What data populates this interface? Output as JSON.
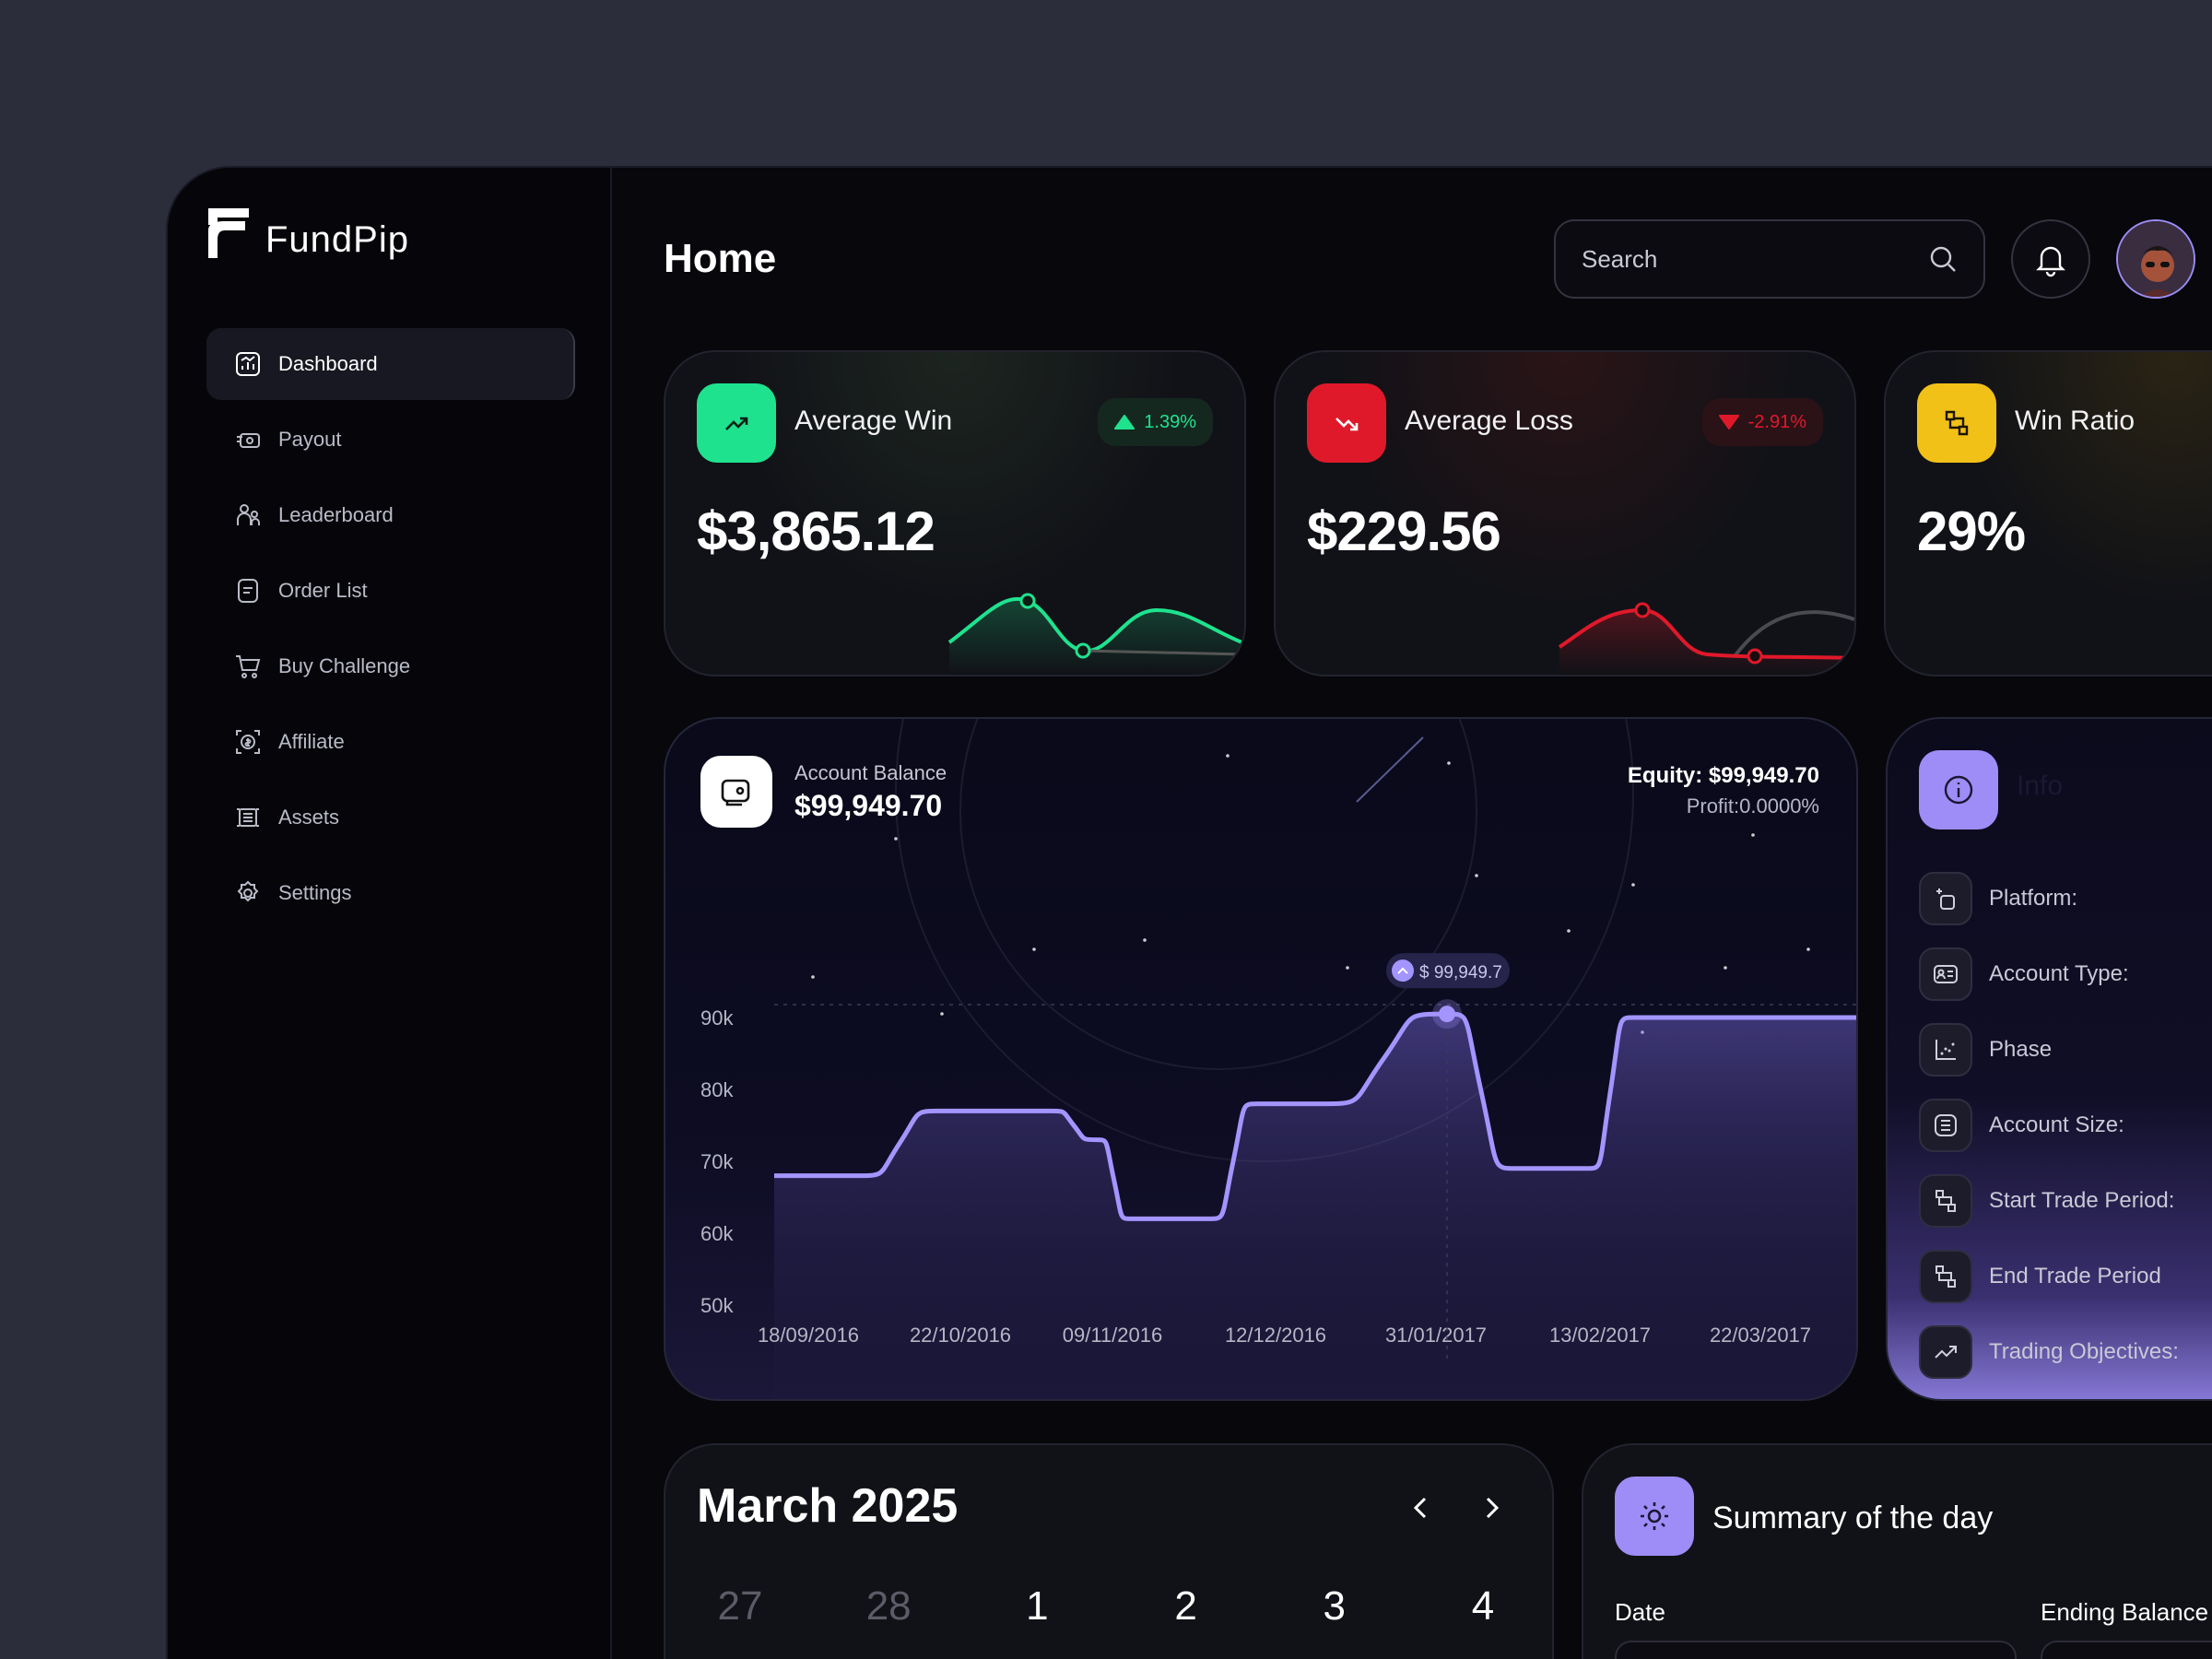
{
  "app": {
    "name": "FundPip"
  },
  "sidebar": {
    "items": [
      {
        "label": "Dashboard",
        "icon": "dashboard-icon",
        "active": true
      },
      {
        "label": "Payout",
        "icon": "payout-icon"
      },
      {
        "label": "Leaderboard",
        "icon": "leaderboard-icon"
      },
      {
        "label": "Order List",
        "icon": "order-list-icon"
      },
      {
        "label": "Buy Challenge",
        "icon": "cart-icon"
      },
      {
        "label": "Affiliate",
        "icon": "affiliate-icon"
      },
      {
        "label": "Assets",
        "icon": "assets-icon"
      },
      {
        "label": "Settings",
        "icon": "gear-icon"
      }
    ]
  },
  "header": {
    "title": "Home",
    "search_placeholder": "Search"
  },
  "stats": [
    {
      "label": "Average Win",
      "value": "$3,865.12",
      "badge": "1.39%",
      "trend": "up",
      "color": "#1fe28e"
    },
    {
      "label": "Average Loss",
      "value": "$229.56",
      "badge": "-2.91%",
      "trend": "down",
      "color": "#e0192a"
    },
    {
      "label": "Win Ratio",
      "value": "29%",
      "color": "#f2c118"
    }
  ],
  "balance": {
    "label": "Account Balance",
    "value": "$99,949.70",
    "equity": "Equity: $99,949.70",
    "profit": "Profit:0.0000%",
    "tooltip": "$ 99,949.7"
  },
  "chart_data": {
    "type": "area",
    "y_ticks": [
      "90k",
      "80k",
      "70k",
      "60k",
      "50k"
    ],
    "ylim": [
      50000,
      90000
    ],
    "x_ticks": [
      "18/09/2016",
      "22/10/2016",
      "09/11/2016",
      "12/12/2016",
      "31/01/2017",
      "13/02/2017",
      "22/03/2017"
    ],
    "series": [
      {
        "values": [
          68000,
          68000,
          77000,
          77000,
          73000,
          62000,
          62000,
          78000,
          78000,
          90500,
          69000,
          69000,
          90000,
          90000
        ]
      }
    ],
    "color": "#a394ff"
  },
  "info": {
    "title": "Info",
    "rows": [
      {
        "label": "Platform:",
        "icon": "platform-icon"
      },
      {
        "label": "Account Type:",
        "icon": "id-card-icon"
      },
      {
        "label": "Phase",
        "icon": "phase-icon"
      },
      {
        "label": "Account Size:",
        "icon": "list-icon"
      },
      {
        "label": "Start Trade Period:",
        "icon": "exchange-icon"
      },
      {
        "label": "End Trade Period",
        "icon": "exchange-icon"
      },
      {
        "label": "Trading Objectives:",
        "icon": "trend-icon"
      }
    ]
  },
  "calendar": {
    "title": "March 2025",
    "days": [
      {
        "n": "27",
        "muted": true
      },
      {
        "n": "28",
        "muted": true
      },
      {
        "n": "1"
      },
      {
        "n": "2"
      },
      {
        "n": "3"
      },
      {
        "n": "4"
      }
    ]
  },
  "summary": {
    "title": "Summary of the day",
    "date_label": "Date",
    "ending_label": "Ending Balance"
  }
}
